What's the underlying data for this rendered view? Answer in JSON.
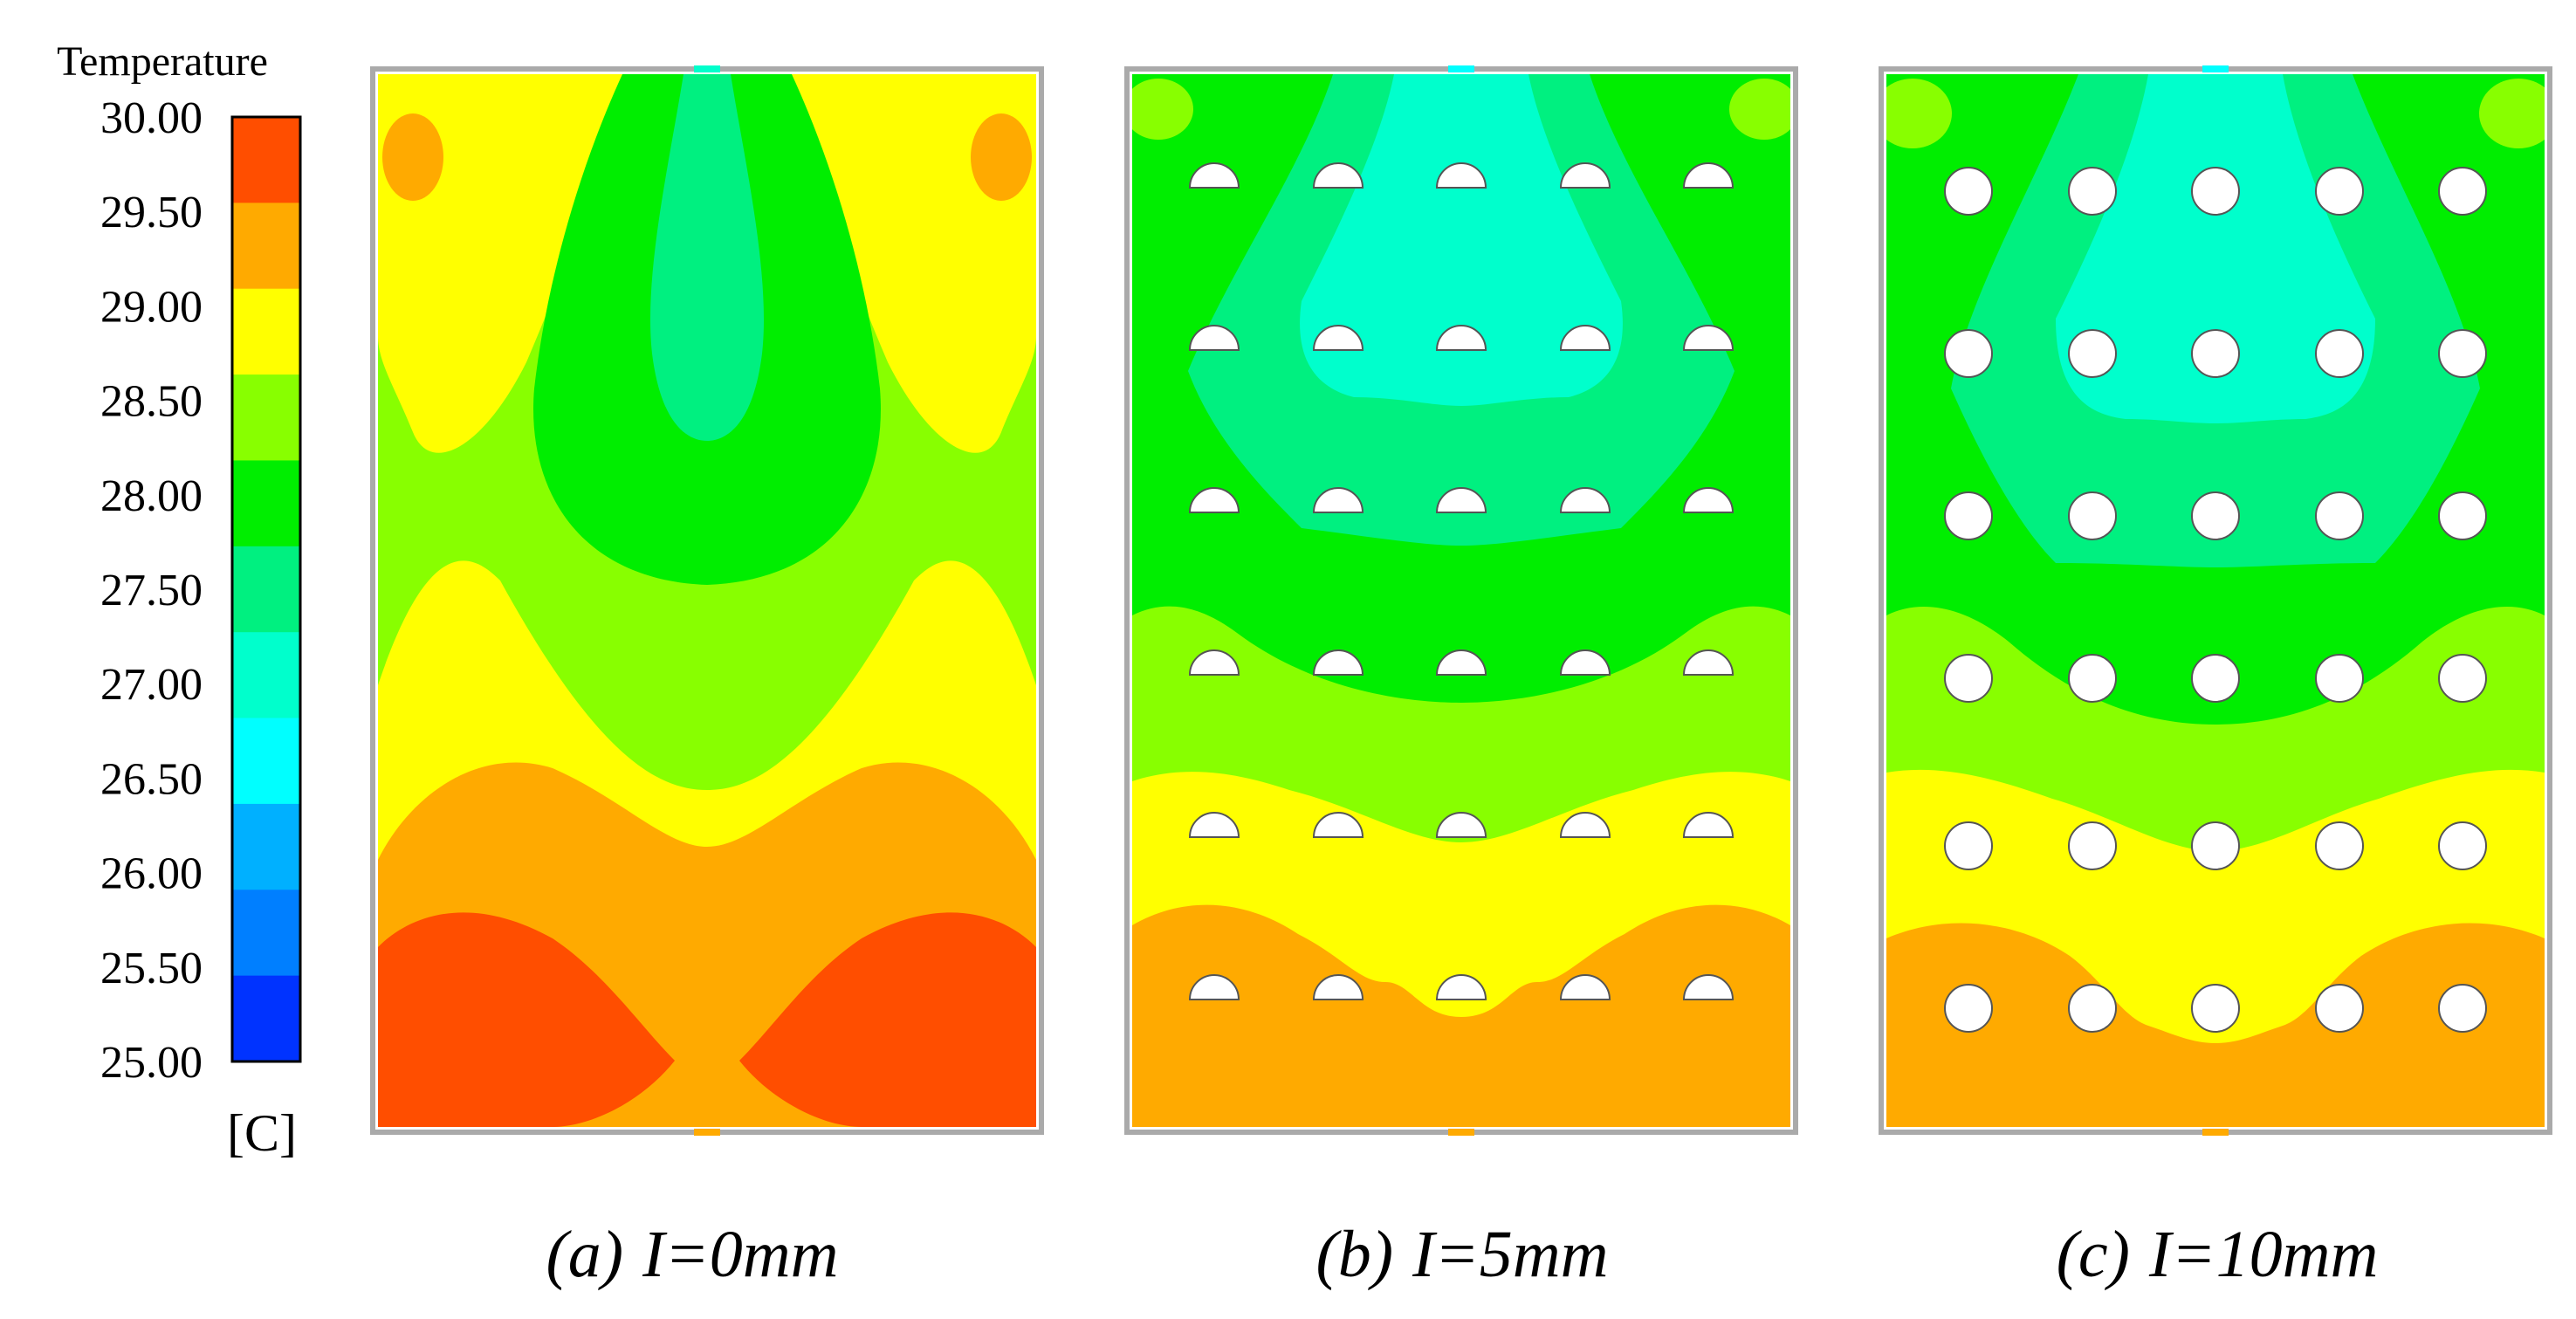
{
  "legend": {
    "title": "Temperature",
    "unit": "[C]",
    "ticks": [
      "30.00",
      "29.50",
      "29.00",
      "28.50",
      "28.00",
      "27.50",
      "27.00",
      "26.50",
      "26.00",
      "25.50",
      "25.00"
    ],
    "band_colors": [
      "#ff4e00",
      "#ffaa00",
      "#ffff00",
      "#88ff00",
      "#00ee00",
      "#00f080",
      "#00ffcc",
      "#00ffff",
      "#00b0ff",
      "#007fff",
      "#0033ff"
    ]
  },
  "panels": [
    {
      "caption_letter": "(a)",
      "caption_text": "I=0mm",
      "hole_style": "none"
    },
    {
      "caption_letter": "(b)",
      "caption_text": "I=5mm",
      "hole_style": "half-circle"
    },
    {
      "caption_letter": "(c)",
      "caption_text": "I=10mm",
      "hole_style": "full-circle"
    }
  ],
  "colors": {
    "t29_5": "#ff4e00",
    "t29_0": "#ffaa00",
    "t28_5": "#ffff00",
    "t28_0": "#88ff00",
    "t27_5": "#00ee00",
    "t27_0": "#00f080",
    "t26_5": "#00ffcc",
    "frame": "#999999",
    "hole": "#ffffff"
  }
}
